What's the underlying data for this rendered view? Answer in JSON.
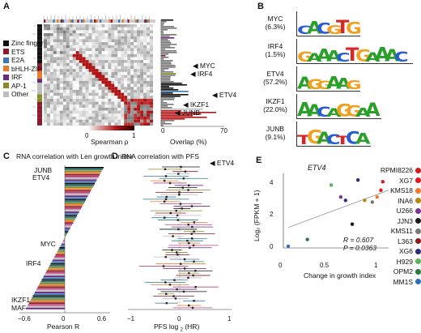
{
  "panels": {
    "a": {
      "letter": "A",
      "legend": [
        {
          "label": "Zinc finger",
          "color": "#111111"
        },
        {
          "label": "ETS",
          "color": "#8b1a2b"
        },
        {
          "label": "E2A",
          "color": "#3b78b8"
        },
        {
          "label": "bHLH-ZIP",
          "color": "#e87a2a"
        },
        {
          "label": "IRF",
          "color": "#6a2a7a"
        },
        {
          "label": "AP-1",
          "color": "#8a8a2a"
        },
        {
          "label": "Other",
          "color": "#bdbdbd"
        }
      ],
      "heatmap_legend": {
        "title": "Spearman ρ",
        "min": "0",
        "max": "1"
      },
      "overlap": {
        "xlabel": "Overlap (%)",
        "tick_min": "0",
        "tick_max": "70"
      },
      "callouts": [
        "MYC",
        "IRF4",
        "ETV4",
        "IKZF1",
        "JUNB"
      ]
    },
    "b": {
      "letter": "B",
      "motifs": [
        {
          "name": "MYC",
          "pct": "(6.3%)",
          "seq": "CACGTG"
        },
        {
          "name": "IRF4",
          "pct": "(1.5%)",
          "seq": "GAAACTGAAAC"
        },
        {
          "name": "ETV4",
          "pct": "(57.2%)",
          "seq": "AGGAAG"
        },
        {
          "name": "IKZF1",
          "pct": "(22.0%)",
          "seq": "AACAGGAA"
        },
        {
          "name": "JUNB",
          "pct": "(9.1%)",
          "seq": "TGACTCA"
        }
      ]
    },
    "c": {
      "letter": "C",
      "title": "RNA correlation with Len growth index",
      "xlabel": "Pearson R",
      "ticks": [
        "−0.6",
        "0",
        "0.6"
      ],
      "labels": [
        "JUNB",
        "ETV4",
        "MYC",
        "IRF4",
        "IKZF1",
        "MAF"
      ]
    },
    "d": {
      "letter": "D",
      "title": "RNA correlation with PFS",
      "xlabel": "PFS log",
      "xlabel_sub": "2",
      "xlabel_tail": " (HR)",
      "ticks": [
        "−1",
        "0",
        "1"
      ],
      "callout": "ETV4"
    },
    "e": {
      "letter": "E",
      "title": "ETV4",
      "ylabel": "Log₂ (FPKM + 1)",
      "xlabel": "Change in growth index",
      "xticks": [
        "0",
        "0.5",
        "1"
      ],
      "yticks": [
        "0",
        "2",
        "4"
      ],
      "stats_r": "R = 0.607",
      "stats_p": "P = 0.0363",
      "cell_lines": [
        {
          "name": "RPMI8226",
          "color": "#d7191c"
        },
        {
          "name": "XG7",
          "color": "#e31a1c"
        },
        {
          "name": "KMS18",
          "color": "#f07a2a"
        },
        {
          "name": "INA6",
          "color": "#b8860b"
        },
        {
          "name": "U266",
          "color": "#7b3294"
        },
        {
          "name": "JJN3",
          "color": "#1a1a1a"
        },
        {
          "name": "KMS11",
          "color": "#777777"
        },
        {
          "name": "L363",
          "color": "#8b1a1a"
        },
        {
          "name": "XG6",
          "color": "#2c2c7a"
        },
        {
          "name": "H929",
          "color": "#5ab55a"
        },
        {
          "name": "OPM2",
          "color": "#2a7a3a"
        },
        {
          "name": "MM1S",
          "color": "#2c6fbb"
        }
      ],
      "points": [
        {
          "x": 0.0,
          "y": 0.1,
          "line": "MM1S"
        },
        {
          "x": 0.2,
          "y": 0.5,
          "line": "OPM2"
        },
        {
          "x": 0.45,
          "y": 3.7,
          "line": "H929"
        },
        {
          "x": 0.55,
          "y": 3.0,
          "line": "U266"
        },
        {
          "x": 0.6,
          "y": 2.8,
          "line": "XG6"
        },
        {
          "x": 0.67,
          "y": 1.4,
          "line": "JJN3"
        },
        {
          "x": 0.73,
          "y": 4.0,
          "line": "XG6"
        },
        {
          "x": 0.8,
          "y": 2.8,
          "line": "INA6"
        },
        {
          "x": 0.88,
          "y": 2.7,
          "line": "KMS11"
        },
        {
          "x": 0.93,
          "y": 3.0,
          "line": "KMS18"
        },
        {
          "x": 0.97,
          "y": 3.4,
          "line": "XG7"
        },
        {
          "x": 0.99,
          "y": 3.9,
          "line": "RPMI8226"
        }
      ]
    }
  }
}
